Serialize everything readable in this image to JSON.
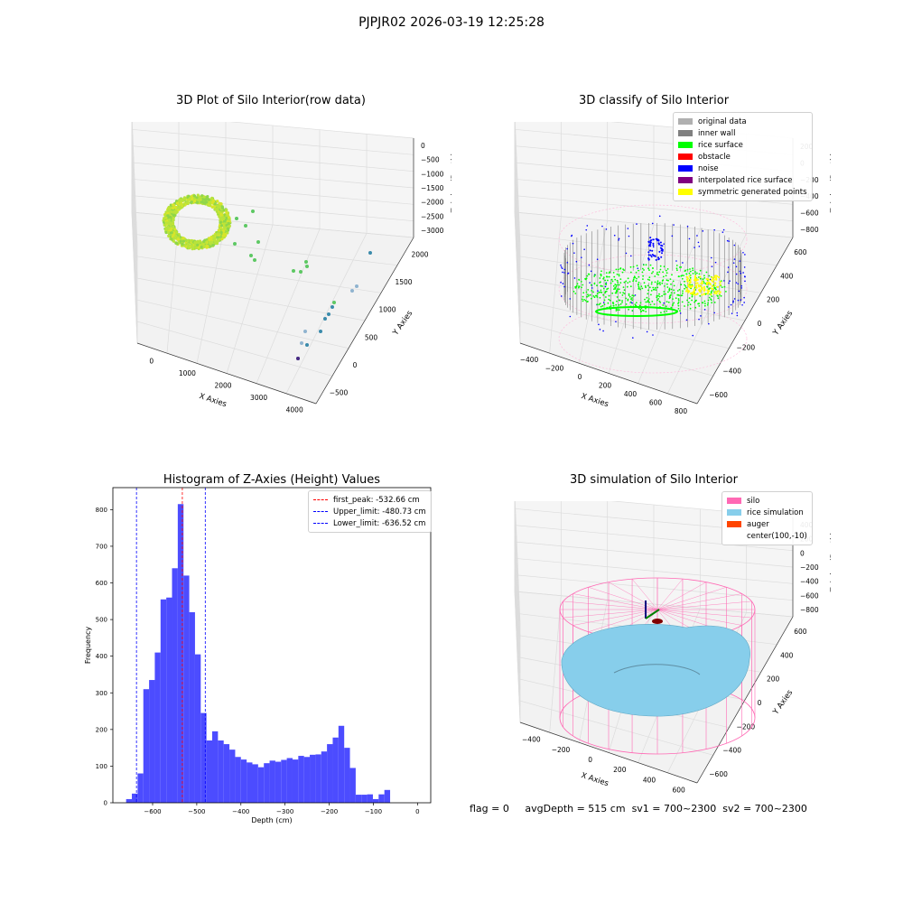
{
  "suptitle": "PJPJR02 2026-03-19 12:25:28",
  "status": {
    "flag": "flag = 0",
    "avg": "avgDepth = 515 cm",
    "sv1": "sv1 = 700~2300",
    "sv2": "sv2 = 700~2300"
  },
  "colors": {
    "silo": "#ff69b4",
    "rice_sim": "#87ceeb",
    "auger": "#ff4500",
    "orig": "#b0b0b0",
    "wall": "#808080",
    "surface": "#00ff00",
    "obstacle": "#ff0000",
    "noise": "#0000ff",
    "interp": "#800080",
    "sym": "#ffff00",
    "hist": "#4c4cff",
    "peak": "#ff0000",
    "limit": "#0000ff"
  },
  "chart_data": [
    {
      "type": "scatter",
      "title": "3D Plot of Silo Interior(row data)",
      "xlabel": "X Axies",
      "ylabel": "Y Axies",
      "zlabel": "Z Axies (Depth)",
      "x_ticks": [
        "0",
        "1000",
        "2000",
        "3000",
        "4000"
      ],
      "y_ticks": [
        "−500",
        "0",
        "500",
        "1000",
        "1500",
        "2000"
      ],
      "z_ticks": [
        "0",
        "−500",
        "−1000",
        "−1500",
        "−2000",
        "−2500",
        "−3000"
      ]
    },
    {
      "type": "scatter",
      "title": "3D classify of Silo Interior",
      "xlabel": "X Axies",
      "ylabel": "Y Axies",
      "zlabel": "Z Axies (Depth)",
      "x_ticks": [
        "−400",
        "−200",
        "0",
        "200",
        "400",
        "600",
        "800"
      ],
      "y_ticks": [
        "−600",
        "−400",
        "−200",
        "0",
        "200",
        "400",
        "600"
      ],
      "z_ticks": [
        "200",
        "0",
        "−200",
        "−400",
        "−600",
        "−800"
      ],
      "legend": [
        "original data",
        "inner wall",
        "rice surface",
        "obstacle",
        "noise",
        "interpolated rice surface",
        "symmetric generated points"
      ]
    },
    {
      "type": "bar",
      "title": "Histogram of Z-Axies (Height) Values",
      "xlabel": "Depth (cm)",
      "ylabel": "Frequency",
      "xlim": [
        -690,
        30
      ],
      "ylim": [
        0,
        860
      ],
      "x_ticks": [
        -600,
        -500,
        -400,
        -300,
        -200,
        -100,
        0
      ],
      "x_tick_labels": [
        "−600",
        "−500",
        "−400",
        "−300",
        "−200",
        "−100",
        "0"
      ],
      "y_ticks": [
        0,
        100,
        200,
        300,
        400,
        500,
        600,
        700,
        800
      ],
      "y_tick_labels": [
        "0",
        "100",
        "200",
        "300",
        "400",
        "500",
        "600",
        "700",
        "800"
      ],
      "bin_start": -660,
      "bin_width": 13,
      "values": [
        10,
        25,
        80,
        310,
        335,
        410,
        555,
        560,
        640,
        815,
        620,
        520,
        405,
        245,
        170,
        195,
        170,
        160,
        145,
        125,
        118,
        110,
        105,
        97,
        108,
        115,
        112,
        117,
        122,
        118,
        128,
        125,
        131,
        132,
        140,
        160,
        178,
        210,
        150,
        95,
        22,
        22,
        23,
        10,
        23,
        35
      ],
      "vlines": [
        {
          "label": "first_peak: -532.66 cm",
          "x": -532.66,
          "kind": "peak"
        },
        {
          "label": "Upper_limit: -480.73 cm",
          "x": -480.73,
          "kind": "limit"
        },
        {
          "label": "Lower_limit: -636.52 cm",
          "x": -636.52,
          "kind": "limit"
        }
      ]
    },
    {
      "type": "scatter",
      "title": "3D simulation of Silo Interior",
      "xlabel": "X Axies",
      "ylabel": "Y Axies",
      "zlabel": "Z Axies (Depth)",
      "x_ticks": [
        "−400",
        "−200",
        "0",
        "200",
        "400",
        "600"
      ],
      "y_ticks": [
        "−600",
        "−400",
        "−200",
        "0",
        "200",
        "400",
        "600"
      ],
      "z_ticks": [
        "400",
        "200",
        "0",
        "−200",
        "−400",
        "−600",
        "−800"
      ],
      "legend": [
        "silo",
        "rice simulation",
        "auger",
        "center(100,-10)"
      ]
    }
  ]
}
